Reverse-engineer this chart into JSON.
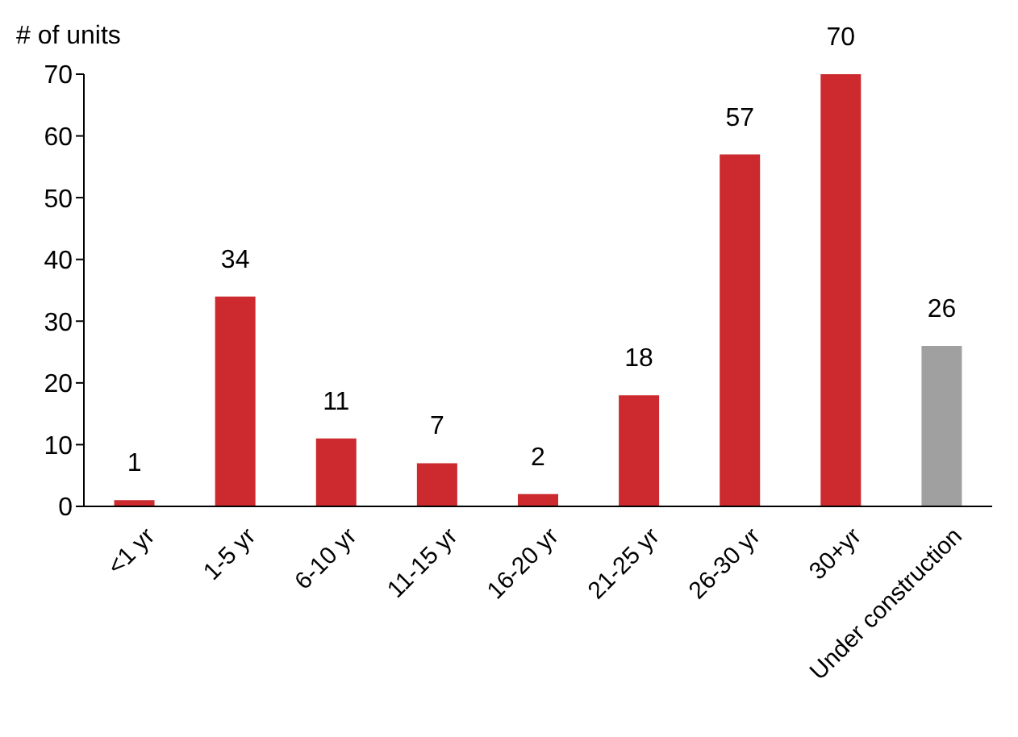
{
  "chart_data": {
    "type": "bar",
    "ylabel": "# of units",
    "categories": [
      "<1 yr",
      "1-5 yr",
      "6-10 yr",
      "11-15 yr",
      "16-20 yr",
      "21-25 yr",
      "26-30 yr",
      "30+yr",
      "Under construction"
    ],
    "values": [
      1,
      34,
      11,
      7,
      2,
      18,
      57,
      70,
      26
    ],
    "colors": [
      "#cc2a2e",
      "#cc2a2e",
      "#cc2a2e",
      "#cc2a2e",
      "#cc2a2e",
      "#cc2a2e",
      "#cc2a2e",
      "#cc2a2e",
      "#a0a0a0"
    ],
    "ylim": [
      0,
      70
    ],
    "yticks": [
      0,
      10,
      20,
      30,
      40,
      50,
      60,
      70
    ],
    "data_labels": true,
    "grid": false,
    "legend": false
  }
}
